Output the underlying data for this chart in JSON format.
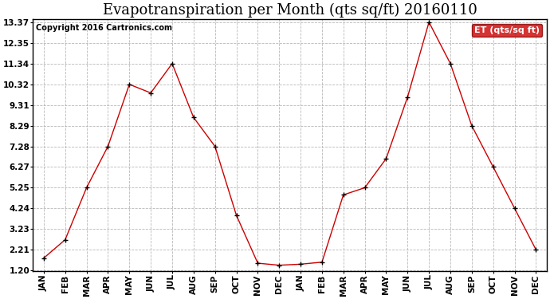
{
  "title": "Evapotranspiration per Month (qts sq/ft) 20160110",
  "copyright": "Copyright 2016 Cartronics.com",
  "legend_label": "ET (qts/sq ft)",
  "x_labels": [
    "JAN",
    "FEB",
    "MAR",
    "APR",
    "MAY",
    "JUN",
    "JUL",
    "AUG",
    "SEP",
    "OCT",
    "NOV",
    "DEC",
    "JAN",
    "FEB",
    "MAR",
    "APR",
    "MAY",
    "JUN",
    "JUL",
    "AUG",
    "SEP",
    "OCT",
    "NOV",
    "DEC"
  ],
  "y_values": [
    1.8,
    2.7,
    5.25,
    7.28,
    10.32,
    9.9,
    11.34,
    8.7,
    7.28,
    3.9,
    1.55,
    1.45,
    1.5,
    1.6,
    4.9,
    5.25,
    6.68,
    9.7,
    13.37,
    11.34,
    8.29,
    6.27,
    4.24,
    2.21
  ],
  "y_ticks": [
    1.2,
    2.21,
    3.23,
    4.24,
    5.25,
    6.27,
    7.28,
    8.29,
    9.31,
    10.32,
    11.34,
    12.35,
    13.37
  ],
  "y_min": 1.2,
  "y_max": 13.37,
  "line_color": "#cc0000",
  "marker_color": "#000000",
  "grid_color": "#b0b0b0",
  "bg_color": "#ffffff",
  "title_fontsize": 13,
  "copyright_fontsize": 7,
  "tick_fontsize": 7.5,
  "legend_bg": "#cc0000",
  "legend_text_color": "#ffffff",
  "legend_fontsize": 8
}
